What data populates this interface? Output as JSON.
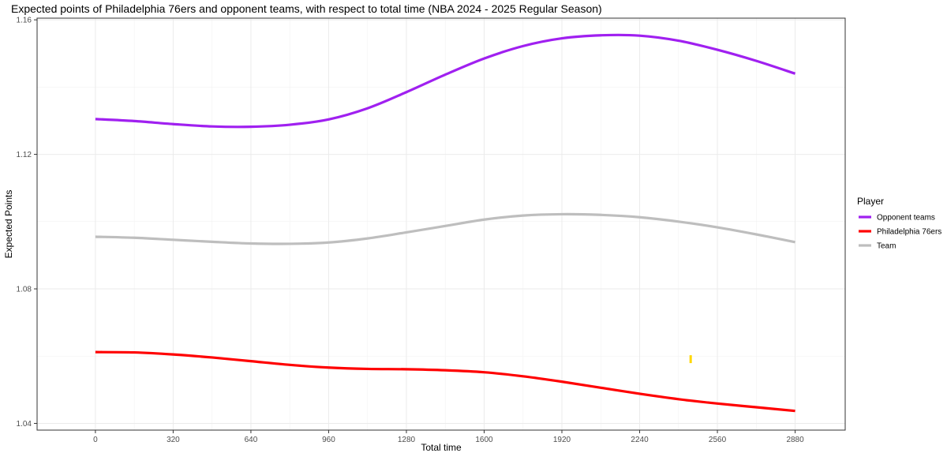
{
  "chart_data": {
    "type": "line",
    "title": "Expected points of Philadelphia 76ers and opponent teams, with respect to total time (NBA 2024 - 2025 Regular Season)",
    "xlabel": "Total time",
    "ylabel": "Expected Points",
    "xlim": [
      -240,
      3086
    ],
    "ylim": [
      1.038,
      1.1605
    ],
    "x_ticks": [
      0,
      320,
      640,
      960,
      1280,
      1600,
      1920,
      2240,
      2560,
      2880
    ],
    "y_ticks": [
      1.04,
      1.08,
      1.12,
      1.16
    ],
    "grid": true,
    "legend": {
      "title": "Player",
      "placement": "right",
      "entries": [
        "Opponent teams",
        "Philadelphia 76ers",
        "Team"
      ]
    },
    "x": [
      0,
      160,
      320,
      480,
      640,
      800,
      960,
      1120,
      1280,
      1440,
      1600,
      1760,
      1920,
      2080,
      2240,
      2400,
      2560,
      2720,
      2880
    ],
    "series": [
      {
        "name": "Opponent teams",
        "color": "#a020f0",
        "values": [
          1.1305,
          1.1299,
          1.129,
          1.1283,
          1.1282,
          1.1288,
          1.1304,
          1.1337,
          1.1385,
          1.1437,
          1.1485,
          1.1522,
          1.1545,
          1.1554,
          1.1553,
          1.1538,
          1.1511,
          1.1478,
          1.144
        ]
      },
      {
        "name": "Philadelphia 76ers",
        "color": "#ff0000",
        "values": [
          1.0612,
          1.0611,
          1.0605,
          1.0596,
          1.0585,
          1.0574,
          1.0566,
          1.0562,
          1.0561,
          1.0558,
          1.0552,
          1.054,
          1.0524,
          1.0506,
          1.0488,
          1.0472,
          1.0459,
          1.0448,
          1.0437
        ]
      },
      {
        "name": "Team",
        "color": "#bebebe",
        "values": [
          1.0955,
          1.0952,
          1.0946,
          1.094,
          1.0935,
          1.0934,
          1.0938,
          1.095,
          1.0968,
          1.0987,
          1.1006,
          1.1018,
          1.1022,
          1.102,
          1.1013,
          1.1,
          1.0983,
          1.0962,
          1.0939
        ]
      }
    ],
    "annotations": [
      {
        "type": "mark",
        "color": "#ffd700",
        "x": 2450,
        "y": 1.0591
      }
    ]
  }
}
